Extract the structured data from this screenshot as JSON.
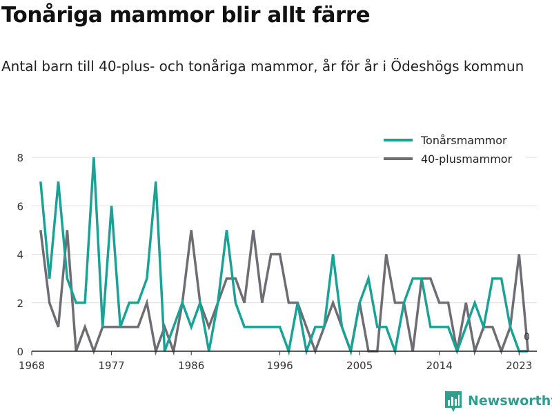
{
  "title": "Tonåriga mammor blir allt färre",
  "subtitle": "Antal barn till 40-plus- och tonåriga mammor, år för år i Ödeshögs kommun",
  "brand": "Newsworthy",
  "chart_data": {
    "type": "line",
    "x": [
      1969,
      1970,
      1971,
      1972,
      1973,
      1974,
      1975,
      1976,
      1977,
      1978,
      1979,
      1980,
      1981,
      1982,
      1983,
      1984,
      1985,
      1986,
      1987,
      1988,
      1989,
      1990,
      1991,
      1992,
      1993,
      1994,
      1995,
      1996,
      1997,
      1998,
      1999,
      2000,
      2001,
      2002,
      2003,
      2004,
      2005,
      2006,
      2007,
      2008,
      2009,
      2010,
      2011,
      2012,
      2013,
      2014,
      2015,
      2016,
      2017,
      2018,
      2019,
      2020,
      2021,
      2022,
      2023,
      2024
    ],
    "series": [
      {
        "name": "Tonårsmammor",
        "color": "#1aa296",
        "values": [
          7,
          3,
          7,
          3,
          2,
          2,
          8,
          1,
          6,
          1,
          2,
          2,
          3,
          7,
          0,
          1,
          2,
          1,
          2,
          0,
          2,
          5,
          2,
          1,
          1,
          1,
          1,
          1,
          0,
          2,
          0,
          1,
          1,
          4,
          1,
          0,
          2,
          3,
          1,
          1,
          0,
          2,
          3,
          3,
          1,
          1,
          1,
          0,
          1,
          2,
          1,
          3,
          3,
          1,
          0,
          0
        ]
      },
      {
        "name": "40-plusmammor",
        "color": "#6d6d73",
        "values": [
          5,
          2,
          1,
          5,
          0,
          1,
          0,
          1,
          1,
          1,
          1,
          1,
          2,
          0,
          1,
          0,
          2,
          5,
          2,
          1,
          2,
          3,
          3,
          2,
          5,
          2,
          4,
          4,
          2,
          2,
          1,
          0,
          1,
          2,
          1,
          0,
          2,
          0,
          0,
          4,
          2,
          2,
          0,
          3,
          3,
          2,
          2,
          0,
          2,
          0,
          1,
          1,
          0,
          1,
          4,
          0
        ]
      }
    ],
    "xticks": [
      1968,
      1977,
      1986,
      1996,
      2005,
      2014,
      2023
    ],
    "yticks": [
      0,
      2,
      4,
      6,
      8
    ],
    "xlim": [
      1968,
      2025
    ],
    "ylim": [
      0,
      8.8
    ],
    "end_label": "0",
    "grid": true,
    "legend_position": "top-right"
  }
}
